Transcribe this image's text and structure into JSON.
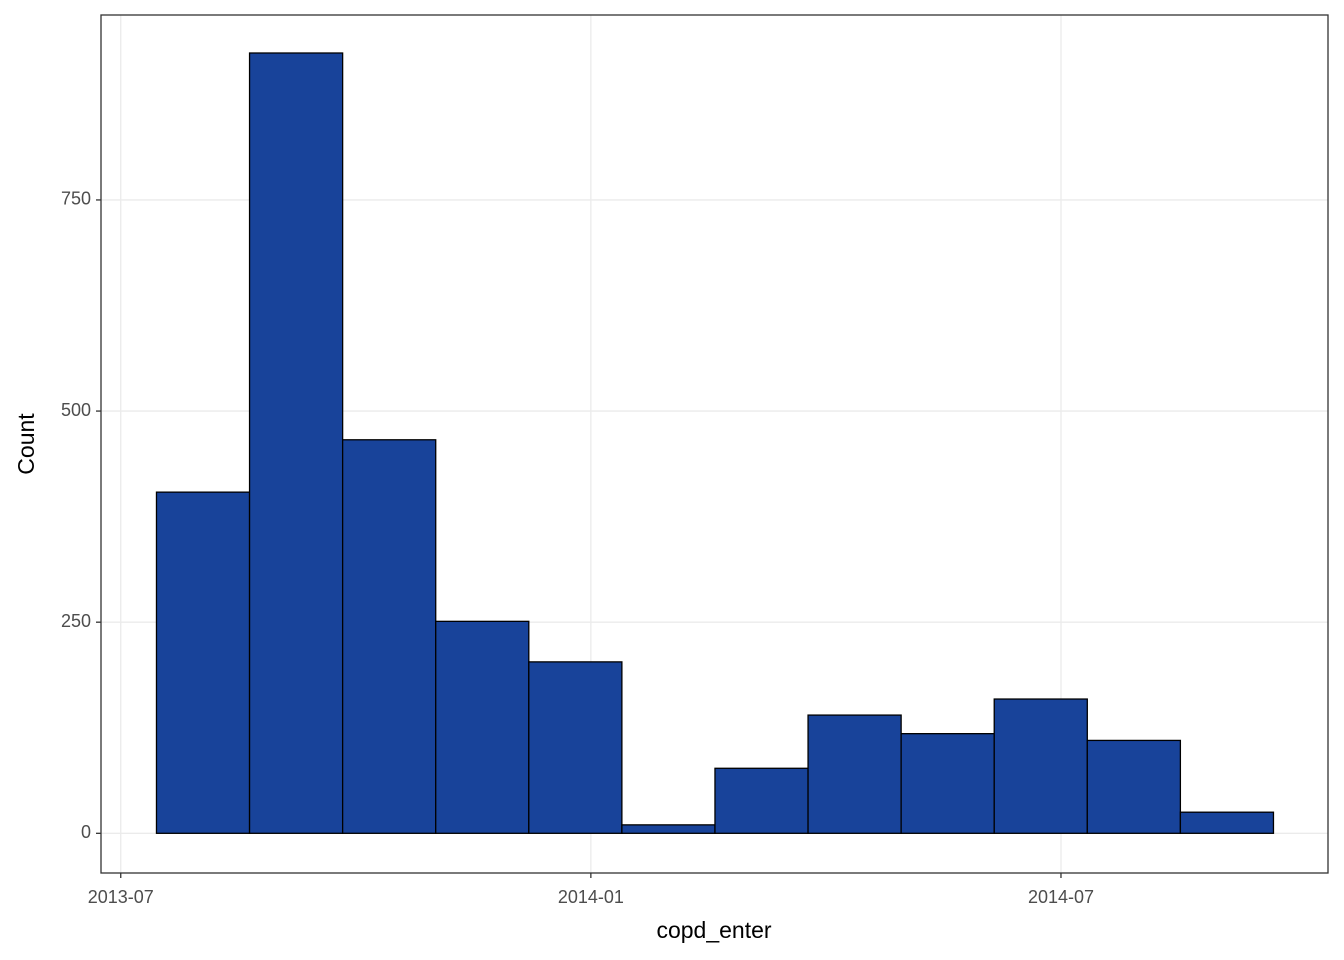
{
  "chart_data": {
    "type": "histogram",
    "x_label": "copd_enter",
    "y_label": "Count",
    "bins": [
      2013.538,
      2013.637,
      2013.736,
      2013.835,
      2013.934,
      2014.033,
      2014.132,
      2014.231,
      2014.33,
      2014.429,
      2014.528,
      2014.627,
      2014.726
    ],
    "values": [
      404,
      924,
      466,
      251,
      203,
      10,
      77,
      140,
      118,
      159,
      110,
      25
    ],
    "color": "#18439a",
    "edge_color": "#000000",
    "xlim": [
      2013.479,
      2014.784
    ],
    "xticks": [
      {
        "value": 2013.5,
        "label": "2013-07"
      },
      {
        "value": 2014.0,
        "label": "2014-01"
      },
      {
        "value": 2014.5,
        "label": "2014-07"
      }
    ],
    "ylim": [
      -47,
      969
    ],
    "yticks": [
      0,
      250,
      500,
      750
    ],
    "grid": true
  }
}
